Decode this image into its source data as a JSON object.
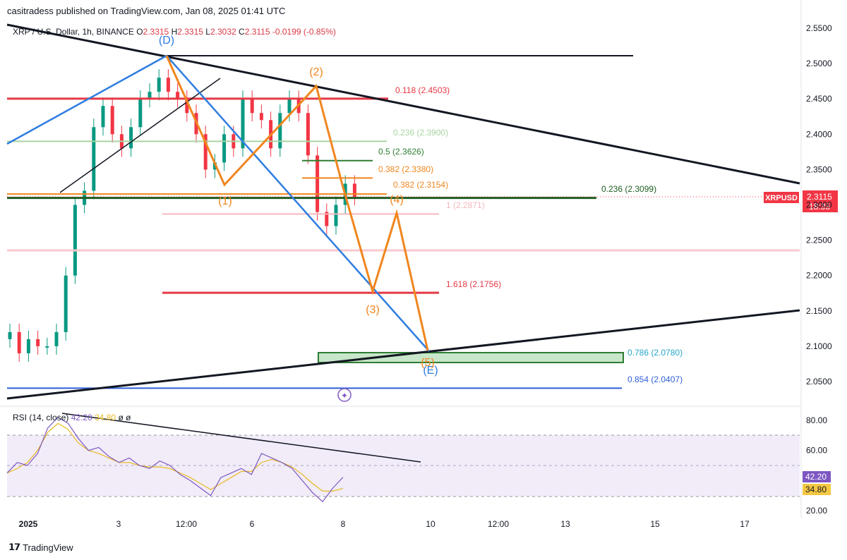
{
  "header": {
    "publisher_line": "casitradess published on TradingView.com, Jan 08, 2025 01:41 UTC"
  },
  "symbol_line": {
    "name": "XRP / U.S. Dollar, 1h, BINANCE",
    "o_label": "O",
    "o": "2.3315",
    "h_label": "H",
    "h": "2.3315",
    "l_label": "L",
    "l": "2.3032",
    "c_label": "C",
    "c": "2.3115",
    "change": "-0.0199 (-0.85%)"
  },
  "price_tag": {
    "symbol": "XRPUSD",
    "price": "2.3115",
    "countdown": "18:35"
  },
  "rsi_title": {
    "name": "RSI (14, close)",
    "rsi": "42.20",
    "ma": "34.80",
    "extra1": "ø",
    "extra2": "ø"
  },
  "rsi_tags": {
    "rsi": "42.20",
    "ma": "34.80"
  },
  "footer": {
    "brand": "TradingView"
  },
  "colors": {
    "candle_up": "#089981",
    "candle_down": "#f23645",
    "rsi_line": "#7e57c2",
    "rsi_ma": "#e8b923",
    "wave_orange": "#f0861e",
    "wave_blue": "#2f7de1",
    "red_level": "#e53945"
  },
  "chart_data": {
    "type": "line",
    "price_axis": {
      "ticks": [
        "2.5500",
        "2.5000",
        "2.4500",
        "2.4000",
        "2.3500",
        "2.3000",
        "2.2500",
        "2.2000",
        "2.1500",
        "2.1000",
        "2.0500"
      ],
      "range": [
        2.03,
        2.555
      ]
    },
    "time_axis": {
      "ticks": [
        "2025",
        "3",
        "12:00",
        "6",
        "8",
        "10",
        "12:00",
        "13",
        "15",
        "17"
      ]
    },
    "price_series": {
      "name": "XRPUSD",
      "x": [
        0,
        5,
        10,
        15,
        20,
        25,
        30,
        35,
        40,
        45,
        50,
        55,
        60,
        65,
        70,
        75,
        80,
        85,
        90,
        95,
        100,
        105,
        110,
        115,
        120,
        125,
        130,
        135,
        140,
        145,
        150,
        155,
        160,
        165,
        170,
        175,
        180,
        182
      ],
      "y": [
        2.12,
        2.09,
        2.11,
        2.1,
        2.1,
        2.12,
        2.2,
        2.3,
        2.32,
        2.41,
        2.44,
        2.4,
        2.38,
        2.41,
        2.45,
        2.46,
        2.48,
        2.46,
        2.45,
        2.43,
        2.4,
        2.35,
        2.36,
        2.4,
        2.38,
        2.45,
        2.43,
        2.42,
        2.38,
        2.43,
        2.45,
        2.43,
        2.37,
        2.29,
        2.27,
        2.3,
        2.33,
        2.3115
      ]
    },
    "fib_levels": [
      {
        "label": "0.118 (2.4503)",
        "value": 2.4503,
        "color": "#e53945"
      },
      {
        "label": "0.236 (2.3900)",
        "value": 2.39,
        "color": "#a8d5a2"
      },
      {
        "label": "0.5 (2.3626)",
        "value": 2.3626,
        "color": "#2e7d32"
      },
      {
        "label": "0.382 (2.3380)",
        "value": 2.338,
        "color": "#f0861e"
      },
      {
        "label": "0.382 (2.3154)",
        "value": 2.3154,
        "color": "#f0861e"
      },
      {
        "label": "0.236 (2.3099)",
        "value": 2.3099,
        "color": "#1b5e20"
      },
      {
        "label": "1 (2.2871)",
        "value": 2.2871,
        "color": "#f4b7bd"
      },
      {
        "label": "1.618 (2.1756)",
        "value": 2.1756,
        "color": "#e53945"
      },
      {
        "label": "0.786 (2.0780)",
        "value": 2.078,
        "color": "#26a6c9"
      },
      {
        "label": "0.854 (2.0407)",
        "value": 2.0407,
        "color": "#2f5fd6"
      }
    ],
    "wave_labels": [
      "(D)",
      "(E)",
      "(1)",
      "(2)",
      "(3)",
      "(4)",
      "(5)"
    ],
    "rsi": {
      "axis_ticks": [
        "80.00",
        "60.00",
        "20.00"
      ],
      "range": [
        18,
        88
      ],
      "values": [
        45,
        52,
        50,
        58,
        75,
        82,
        78,
        68,
        60,
        62,
        56,
        52,
        55,
        50,
        48,
        53,
        50,
        44,
        40,
        35,
        30,
        42,
        45,
        48,
        44,
        58,
        55,
        52,
        48,
        40,
        32,
        26,
        35,
        42.2
      ],
      "ma_values": [
        45,
        48,
        52,
        60,
        72,
        78,
        74,
        65,
        60,
        58,
        55,
        52,
        52,
        50,
        49,
        49,
        48,
        45,
        42,
        38,
        34,
        38,
        42,
        46,
        46,
        52,
        54,
        52,
        49,
        44,
        38,
        33,
        33,
        34.8
      ],
      "current": 42.2,
      "ma_current": 34.8
    }
  }
}
